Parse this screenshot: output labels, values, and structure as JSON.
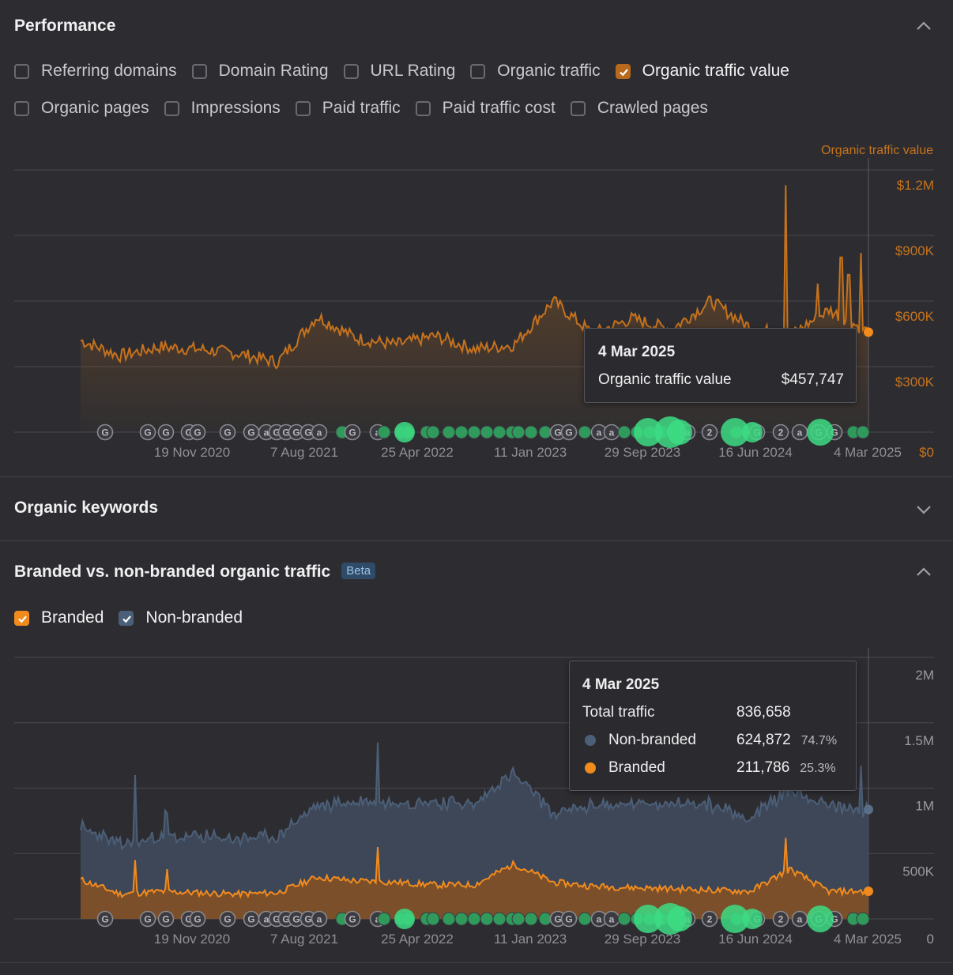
{
  "performance": {
    "title": "Performance",
    "metrics": [
      {
        "label": "Referring domains",
        "checked": false
      },
      {
        "label": "Domain Rating",
        "checked": false
      },
      {
        "label": "URL Rating",
        "checked": false
      },
      {
        "label": "Organic traffic",
        "checked": false
      },
      {
        "label": "Organic traffic value",
        "checked": true
      },
      {
        "label": "Organic pages",
        "checked": false
      },
      {
        "label": "Impressions",
        "checked": false
      },
      {
        "label": "Paid traffic",
        "checked": false
      },
      {
        "label": "Paid traffic cost",
        "checked": false
      },
      {
        "label": "Crawled pages",
        "checked": false
      }
    ],
    "tooltip": {
      "date": "4 Mar 2025",
      "label": "Organic traffic value",
      "value": "$457,747"
    }
  },
  "organic_keywords": {
    "title": "Organic keywords"
  },
  "branded": {
    "title": "Branded vs. non-branded organic traffic",
    "badge": "Beta",
    "toggles": [
      {
        "label": "Branded",
        "checked": true
      },
      {
        "label": "Non-branded",
        "checked": true
      }
    ],
    "tooltip": {
      "date": "4 Mar 2025",
      "total_label": "Total traffic",
      "total_value": "836,658",
      "rows": [
        {
          "label": "Non-branded",
          "value": "624,872",
          "pct": "74.7%",
          "color": "#4c5f78"
        },
        {
          "label": "Branded",
          "value": "211,786",
          "pct": "25.3%",
          "color": "#f28b1e"
        }
      ]
    }
  },
  "colors": {
    "orange": "#f28b1e",
    "value_line": "#c6721d",
    "slate": "#4c5f78",
    "bg": "#2d2d31"
  },
  "chart_data": [
    {
      "type": "line",
      "series_label": "Organic traffic value",
      "x_ticks": [
        "19 Nov 2020",
        "7 Aug 2021",
        "25 Apr 2022",
        "11 Jan 2023",
        "29 Sep 2023",
        "16 Jun 2024",
        "4 Mar 2025"
      ],
      "y_ticks": [
        "$0",
        "$300K",
        "$600K",
        "$900K",
        "$1.2M"
      ],
      "ylim": [
        0,
        1200000
      ],
      "x": [
        "Mar 2020",
        "Jun 2020",
        "Sep 2020",
        "Dec 2020",
        "Mar 2021",
        "Jun 2021",
        "Sep 2021",
        "Dec 2021",
        "Mar 2022",
        "Jun 2022",
        "Sep 2022",
        "Dec 2022",
        "Mar 2023",
        "Jun 2023",
        "Sep 2023",
        "Dec 2023",
        "Mar 2024",
        "Jun 2024",
        "Sep 2024",
        "Dec 2024",
        "Mar 2025"
      ],
      "series": [
        {
          "values": [
            420000,
            350000,
            390000,
            380000,
            360000,
            320000,
            530000,
            430000,
            400000,
            440000,
            380000,
            400000,
            600000,
            450000,
            520000,
            470000,
            600000,
            480000,
            440000,
            560000,
            457747
          ]
        }
      ],
      "grid": true
    },
    {
      "type": "area",
      "x_ticks": [
        "19 Nov 2020",
        "7 Aug 2021",
        "25 Apr 2022",
        "11 Jan 2023",
        "29 Sep 2023",
        "16 Jun 2024",
        "4 Mar 2025"
      ],
      "y_ticks": [
        "0",
        "500K",
        "1M",
        "1.5M",
        "2M"
      ],
      "ylim": [
        0,
        2000000
      ],
      "x": [
        "Mar 2020",
        "Jun 2020",
        "Sep 2020",
        "Dec 2020",
        "Mar 2021",
        "Jun 2021",
        "Sep 2021",
        "Dec 2021",
        "Mar 2022",
        "Jun 2022",
        "Sep 2022",
        "Dec 2022",
        "Mar 2023",
        "Jun 2023",
        "Sep 2023",
        "Dec 2023",
        "Mar 2024",
        "Jun 2024",
        "Sep 2024",
        "Dec 2024",
        "Mar 2025"
      ],
      "series": [
        {
          "name": "Non-branded",
          "values": [
            400000,
            380000,
            410000,
            430000,
            420000,
            430000,
            550000,
            600000,
            620000,
            630000,
            620000,
            700000,
            520000,
            620000,
            640000,
            660000,
            650000,
            560000,
            610000,
            640000,
            624872
          ]
        },
        {
          "name": "Branded",
          "values": [
            300000,
            190000,
            210000,
            200000,
            190000,
            200000,
            320000,
            290000,
            280000,
            260000,
            260000,
            420000,
            280000,
            250000,
            240000,
            230000,
            220000,
            210000,
            380000,
            210000,
            211786
          ]
        }
      ],
      "grid": true
    }
  ]
}
